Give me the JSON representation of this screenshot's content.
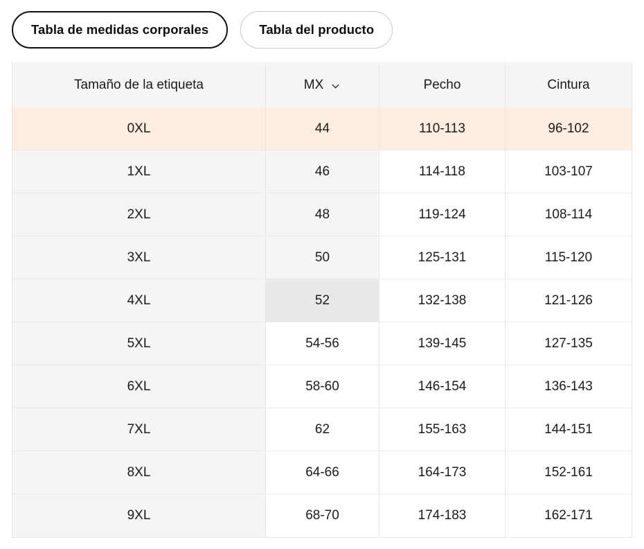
{
  "tabs": [
    {
      "label": "Tabla de medidas corporales",
      "active": true
    },
    {
      "label": "Tabla del producto",
      "active": false
    }
  ],
  "table": {
    "columns": [
      {
        "label": "Tamaño de la etiqueta"
      },
      {
        "label": "MX",
        "dropdown": true,
        "dropdown_icon": "chevron-down-icon"
      },
      {
        "label": "Pecho"
      },
      {
        "label": "Cintura"
      }
    ],
    "rows": [
      {
        "size": "0XL",
        "mx": "44",
        "pecho": "110-113",
        "cintura": "96-102",
        "row_highlight": true
      },
      {
        "size": "1XL",
        "mx": "46",
        "pecho": "114-118",
        "cintura": "103-107",
        "mx_shaded": true
      },
      {
        "size": "2XL",
        "mx": "48",
        "pecho": "119-124",
        "cintura": "108-114",
        "mx_shaded": true
      },
      {
        "size": "3XL",
        "mx": "50",
        "pecho": "125-131",
        "cintura": "115-120",
        "mx_shaded": true
      },
      {
        "size": "4XL",
        "mx": "52",
        "pecho": "132-138",
        "cintura": "121-126",
        "mx_selected": true
      },
      {
        "size": "5XL",
        "mx": "54-56",
        "pecho": "139-145",
        "cintura": "127-135"
      },
      {
        "size": "6XL",
        "mx": "58-60",
        "pecho": "146-154",
        "cintura": "136-143"
      },
      {
        "size": "7XL",
        "mx": "62",
        "pecho": "155-163",
        "cintura": "144-151"
      },
      {
        "size": "8XL",
        "mx": "64-66",
        "pecho": "164-173",
        "cintura": "152-161"
      },
      {
        "size": "9XL",
        "mx": "68-70",
        "pecho": "174-183",
        "cintura": "162-171"
      }
    ],
    "colors": {
      "highlight_row": "#fcedde",
      "shaded_cell": "#f5f5f6",
      "selected_cell": "#e9e9e9"
    }
  }
}
